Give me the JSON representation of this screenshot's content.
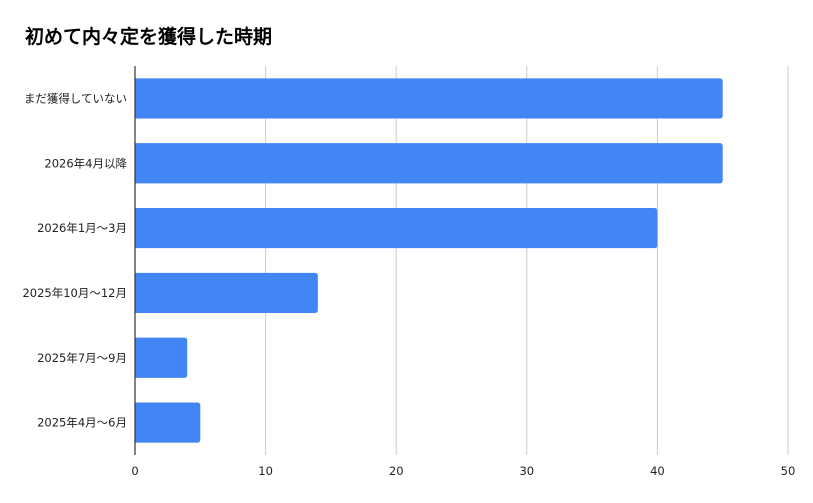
{
  "chart_data": {
    "type": "bar",
    "orientation": "horizontal",
    "title": "初めて内々定を獲得した時期",
    "xlabel": "",
    "ylabel": "",
    "categories": [
      "まだ獲得していない",
      "2026年4月以降",
      "2026年1月～3月",
      "2025年10月～12月",
      "2025年7月～9月",
      "2025年4月～6月"
    ],
    "series": [
      {
        "values": [
          45,
          45,
          40,
          14,
          4,
          5
        ]
      }
    ],
    "xlim": [
      0,
      50
    ],
    "xticks": [
      0,
      10,
      20,
      30,
      40,
      50
    ],
    "grid": true,
    "legend": "none",
    "colors": {
      "bar": "#4285f4",
      "grid": "#cccccc",
      "axis": "#333333"
    }
  }
}
